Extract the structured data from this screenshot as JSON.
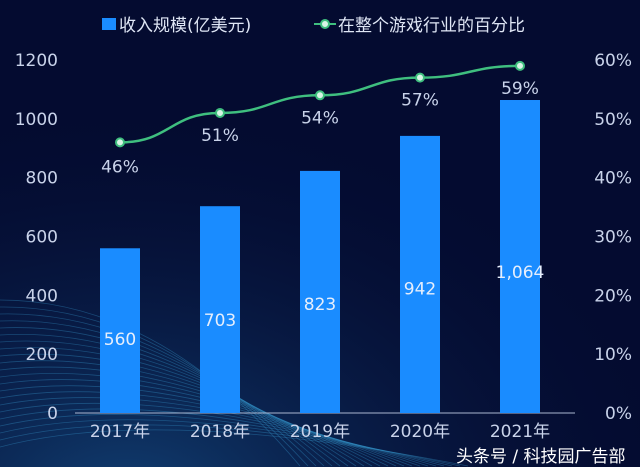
{
  "chart_data": {
    "type": "bar+line",
    "categories": [
      "2017年",
      "2018年",
      "2019年",
      "2020年",
      "2021年"
    ],
    "series": [
      {
        "name": "收入规模(亿美元)",
        "type": "bar",
        "axis": "left",
        "values": [
          560,
          703,
          823,
          942,
          1064
        ],
        "labels": [
          "560",
          "703",
          "823",
          "942",
          "1,064"
        ],
        "color": "#1a8cff"
      },
      {
        "name": "在整个游戏行业的百分比",
        "type": "line",
        "axis": "right",
        "values": [
          46,
          51,
          54,
          57,
          59
        ],
        "labels": [
          "46%",
          "51%",
          "54%",
          "57%",
          "59%"
        ],
        "color": "#3fbf7f"
      }
    ],
    "left_axis": {
      "range": [
        0,
        1200
      ],
      "ticks": [
        "0",
        "200",
        "400",
        "600",
        "800",
        "1000",
        "1200"
      ]
    },
    "right_axis": {
      "range": [
        0,
        60
      ],
      "ticks": [
        "0%",
        "10%",
        "20%",
        "30%",
        "40%",
        "50%",
        "60%"
      ]
    },
    "legend_position": "top",
    "grid": false
  },
  "watermark": "头条号 / 科技园广告部",
  "colors": {
    "background": "#040b30",
    "bar": "#1a8cff",
    "line": "#3fbf7f"
  }
}
